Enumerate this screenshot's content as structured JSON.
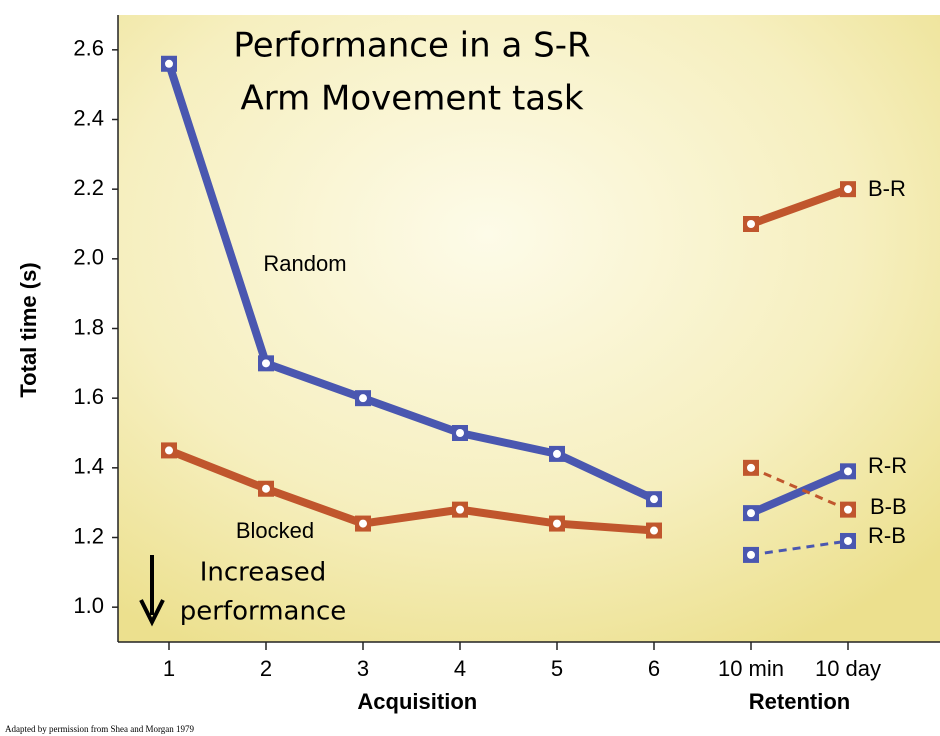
{
  "chart_data": {
    "type": "line",
    "title_lines": [
      "Performance in a S-R",
      "Arm Movement task"
    ],
    "y_label": "Total time (s)",
    "categories": [
      "1",
      "2",
      "3",
      "4",
      "5",
      "6",
      "10 min",
      "10 day"
    ],
    "x_groups": [
      {
        "label": "Acquisition",
        "from": 0,
        "to": 5
      },
      {
        "label": "Retention",
        "from": 6,
        "to": 7
      }
    ],
    "ylim": [
      0.9,
      2.7
    ],
    "yticks": [
      {
        "value": 1,
        "label": "1.0"
      },
      1.2,
      1.4,
      1.6,
      1.8,
      {
        "value": 2,
        "label": "2.0"
      },
      2.2,
      2.4,
      2.6
    ],
    "series": [
      {
        "name": "Random",
        "color": "#4a57b0",
        "dashed": false,
        "values": [
          2.56,
          1.7,
          1.6,
          1.5,
          1.44,
          1.31,
          null,
          null
        ]
      },
      {
        "name": "Blocked",
        "color": "#c0562d",
        "dashed": false,
        "values": [
          1.45,
          1.34,
          1.24,
          1.28,
          1.24,
          1.22,
          null,
          null
        ]
      },
      {
        "name": "B-R",
        "color": "#c0562d",
        "dashed": false,
        "values": [
          null,
          null,
          null,
          null,
          null,
          null,
          2.1,
          2.2
        ]
      },
      {
        "name": "R-R",
        "color": "#4a57b0",
        "dashed": false,
        "values": [
          null,
          null,
          null,
          null,
          null,
          null,
          1.27,
          1.39
        ]
      },
      {
        "name": "B-B",
        "color": "#c0562d",
        "dashed": true,
        "values": [
          null,
          null,
          null,
          null,
          null,
          null,
          1.4,
          1.28
        ]
      },
      {
        "name": "R-B",
        "color": "#4a57b0",
        "dashed": true,
        "values": [
          null,
          null,
          null,
          null,
          null,
          null,
          1.15,
          1.19
        ]
      }
    ],
    "annotation_lines": [
      "Increased",
      "performance"
    ],
    "footnote": "Adapted by permission from Shea and Morgan 1979"
  }
}
